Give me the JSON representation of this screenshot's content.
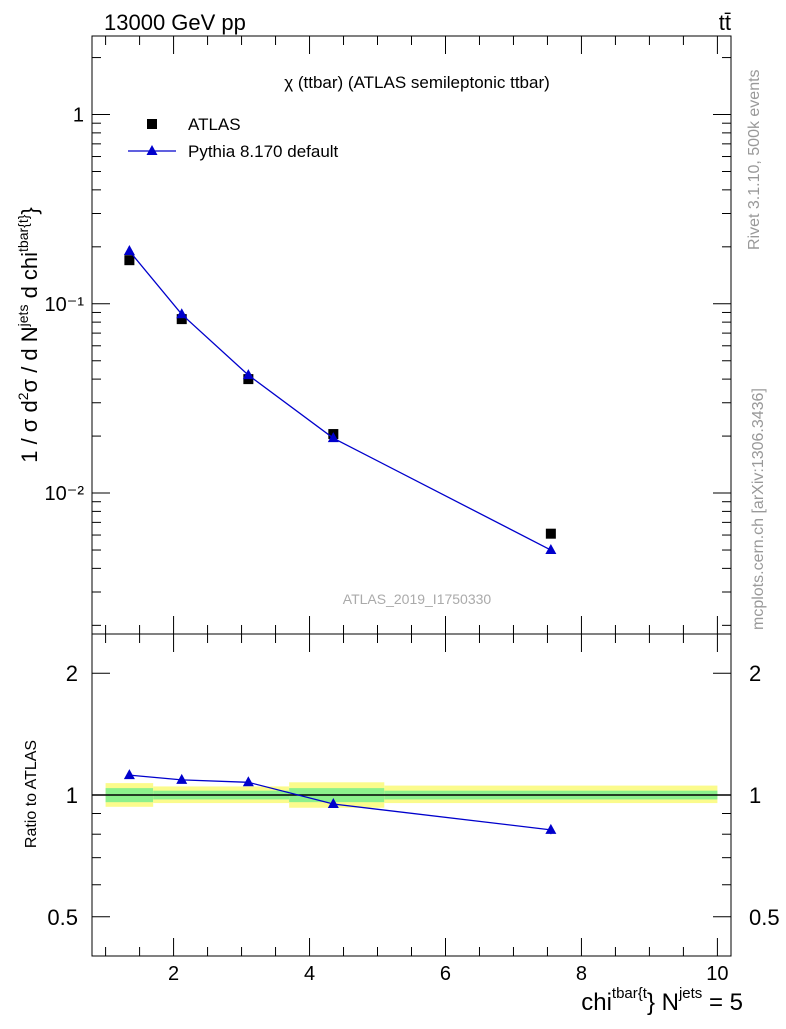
{
  "header": {
    "energy_label": "13000 GeV pp",
    "process_label": "tt̄"
  },
  "side_labels": {
    "rivet": "Rivet 3.1.10,  500k events",
    "mcplots": "mcplots.cern.ch [arXiv:1306.3436]"
  },
  "chart_data": [
    {
      "type": "scatter",
      "title": "χ (ttbar) (ATLAS semileptonic ttbar)",
      "watermark": "ATLAS_2019_I1750330",
      "ylabel": "1 / σ d²σ / d N^jets d chi^tbar{t}",
      "yscale": "log",
      "ylim": [
        0.0018,
        2.6
      ],
      "xlim": [
        0.8,
        10.2
      ],
      "yticks": [
        {
          "value": 1,
          "label": "1"
        },
        {
          "value": 0.1,
          "label": "10⁻¹"
        },
        {
          "value": 0.01,
          "label": "10⁻²"
        }
      ],
      "legend": {
        "placement": "top-left"
      },
      "series": [
        {
          "name": "ATLAS",
          "marker": "square",
          "color": "#000000",
          "x": [
            1.35,
            2.12,
            3.1,
            4.35,
            7.55
          ],
          "y": [
            0.17,
            0.083,
            0.04,
            0.0205,
            0.0061
          ]
        },
        {
          "name": "Pythia 8.170 default",
          "marker": "triangle",
          "color": "#0000cc",
          "x": [
            1.35,
            2.12,
            3.1,
            4.35,
            7.55
          ],
          "y": [
            0.19,
            0.088,
            0.042,
            0.0195,
            0.005
          ]
        }
      ]
    },
    {
      "type": "line",
      "ylabel": "Ratio to ATLAS",
      "yscale": "log",
      "ylim": [
        0.4,
        2.5
      ],
      "xlim": [
        0.8,
        10.2
      ],
      "xlabel": "chi^tbar{t} N^jets = 5",
      "xticks": [
        2,
        4,
        6,
        8,
        10
      ],
      "yticks": [
        {
          "value": 2,
          "label": "2"
        },
        {
          "value": 1,
          "label": "1"
        },
        {
          "value": 0.5,
          "label": "0.5"
        }
      ],
      "reference_line": 1,
      "uncertainty_bands": [
        {
          "x0": 1.0,
          "x1": 1.7,
          "outer": [
            0.935,
            1.07
          ],
          "inner": [
            0.96,
            1.04
          ]
        },
        {
          "x0": 1.7,
          "x1": 3.7,
          "outer": [
            0.955,
            1.05
          ],
          "inner": [
            0.975,
            1.025
          ]
        },
        {
          "x0": 3.7,
          "x1": 5.1,
          "outer": [
            0.93,
            1.075
          ],
          "inner": [
            0.96,
            1.04
          ]
        },
        {
          "x0": 5.1,
          "x1": 10.0,
          "outer": [
            0.955,
            1.055
          ],
          "inner": [
            0.975,
            1.025
          ]
        }
      ],
      "series": [
        {
          "name": "Pythia 8.170 default",
          "marker": "triangle",
          "color": "#0000cc",
          "x": [
            1.35,
            2.12,
            3.1,
            4.35,
            7.55
          ],
          "y": [
            1.12,
            1.09,
            1.075,
            0.95,
            0.82
          ],
          "yerr": [
            0.01,
            0.008,
            0.008,
            0.01,
            0.02
          ]
        }
      ]
    }
  ]
}
